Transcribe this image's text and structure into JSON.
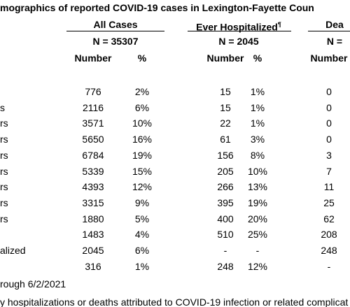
{
  "title": "mographics of reported COVID-19 cases in Lexington-Fayette Coun",
  "groups": [
    {
      "name": "All Cases",
      "n": "N =  35307"
    },
    {
      "name": "Ever Hospitalized",
      "mark": "¶",
      "n": "N =  2045"
    },
    {
      "name": "Dea",
      "n": "N ="
    }
  ],
  "columns": [
    "Number",
    "%",
    "Number",
    "%",
    "Number"
  ],
  "rows": [
    {
      "cells": [
        "776",
        "2%",
        "15",
        "1%",
        "0"
      ]
    },
    {
      "label": "s",
      "cells": [
        "2116",
        "6%",
        "15",
        "1%",
        "0"
      ]
    },
    {
      "label": "rs",
      "cells": [
        "3571",
        "10%",
        "22",
        "1%",
        "0"
      ]
    },
    {
      "label": "rs",
      "cells": [
        "5650",
        "16%",
        "61",
        "3%",
        "0"
      ]
    },
    {
      "label": "rs",
      "cells": [
        "6784",
        "19%",
        "156",
        "8%",
        "3"
      ]
    },
    {
      "label": "rs",
      "cells": [
        "5339",
        "15%",
        "205",
        "10%",
        "7"
      ]
    },
    {
      "label": "rs",
      "cells": [
        "4393",
        "12%",
        "266",
        "13%",
        "11"
      ]
    },
    {
      "label": "rs",
      "cells": [
        "3315",
        "9%",
        "395",
        "19%",
        "25"
      ]
    },
    {
      "label": "rs",
      "cells": [
        "1880",
        "5%",
        "400",
        "20%",
        "62"
      ]
    },
    {
      "cells": [
        "1483",
        "4%",
        "510",
        "25%",
        "208"
      ]
    },
    {
      "label": "alized",
      "cells": [
        "2045",
        "6%",
        "-",
        "-",
        "248"
      ]
    },
    {
      "cells": [
        "316",
        "1%",
        "248",
        "12%",
        "-"
      ]
    }
  ],
  "footnotes": [
    "rough 6/2/2021",
    "y hospitalizations or deaths attributed to COVID-19 infection or related complicat"
  ]
}
